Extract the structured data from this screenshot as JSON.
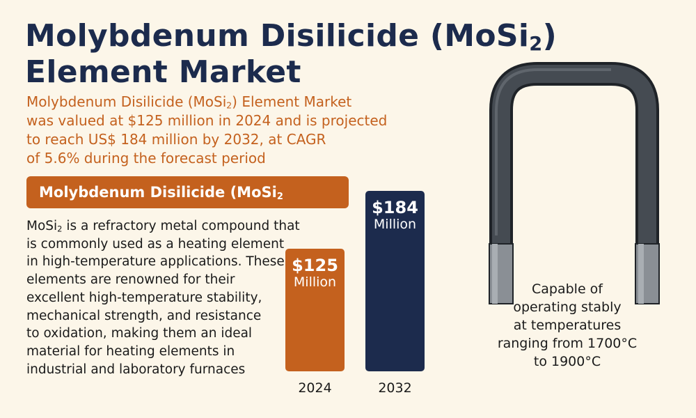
{
  "title": {
    "line1": "Molybdenum Disilicide (MoSi",
    "line1_sub": "2",
    "line1_end": ")",
    "line2": "Element Market"
  },
  "summary": {
    "line1a": "Molybdenum Disilicide (MoSi",
    "line1_sub": "2",
    "line1b": ") Element Market",
    "line2": "was valued at $125 million in 2024 and is projected",
    "line3": "to reach US$ 184 million by 2032, at CAGR",
    "line4": "of 5.6% during the forecast period"
  },
  "banner": {
    "text": "Molybdenum Disilicide (MoSi",
    "sub": "2"
  },
  "description": {
    "line1a": "MoSi",
    "line1_sub": "2",
    "line1b": " is a refractory metal compound that",
    "line2": "is commonly used as a heating element",
    "line3": "in high-temperature applications. These",
    "line4": "elements are renowned for their",
    "line5": "excellent high-temperature stability,",
    "line6": "mechanical strength, and resistance",
    "line7": "to oxidation, making them an ideal",
    "line8": "material for heating elements in",
    "line9": "industrial and laboratory furnaces"
  },
  "capability": {
    "line1": "Capable of",
    "line2": "operating stably",
    "line3": "at temperatures",
    "line4": "ranging from 1700°C",
    "line5": "to 1900°C"
  },
  "colors": {
    "accent": "#c4611e",
    "navy": "#1c2b4d",
    "background": "#fcf6e9"
  },
  "chart_data": {
    "type": "bar",
    "categories": [
      "2024",
      "2032"
    ],
    "values": [
      125,
      184
    ],
    "data_labels": [
      "$125",
      "$184"
    ],
    "unit_label": "Million",
    "colors": [
      "#c4611e",
      "#1c2b4d"
    ],
    "ylim": [
      0,
      200
    ],
    "grid": false,
    "title": "",
    "xlabel": "",
    "ylabel": ""
  }
}
